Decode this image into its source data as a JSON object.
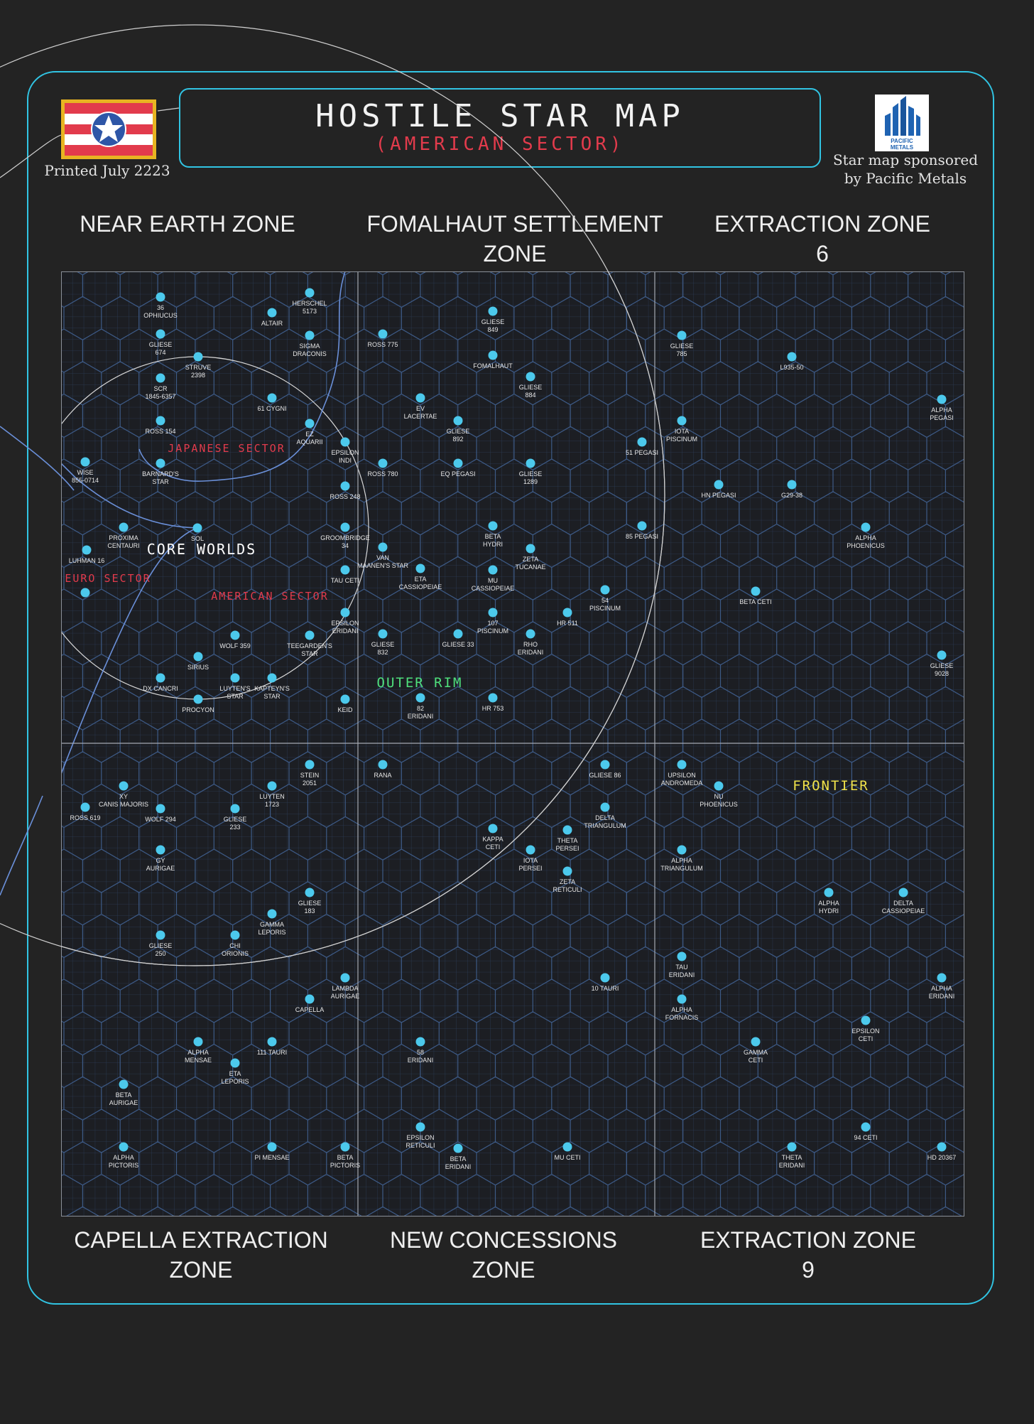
{
  "header": {
    "title": "HOSTILE STAR MAP",
    "subtitle": "(AMERICAN SECTOR)",
    "printed": "Printed July 2223",
    "sponsor_text": "Star map sponsored by Pacific Metals",
    "sponsor_logo_text": "PACIFIC METALS"
  },
  "colors": {
    "frame": "#31c4e3",
    "star": "#4cc9ec",
    "grid": "#3d5a86",
    "japanese": "#e23b4c",
    "american": "#e23b4c",
    "euro": "#e23b4c",
    "outer_rim": "#4fe07c",
    "frontier": "#f0e24a",
    "flag_red": "#e23b4c",
    "flag_gold": "#e8b422",
    "flag_blue": "#2e56a7"
  },
  "icons": {
    "flag": "american-colony-flag-icon",
    "sponsor": "pacific-metals-skyline-icon"
  },
  "zones": [
    {
      "id": "near-earth",
      "label": "NEAR EARTH ZONE"
    },
    {
      "id": "fomalhaut",
      "label": "FOMALHAUT SETTLEMENT\nZONE"
    },
    {
      "id": "extraction-6",
      "label": "EXTRACTION ZONE\n6"
    },
    {
      "id": "capella",
      "label": "CAPELLA EXTRACTION\nZONE"
    },
    {
      "id": "new-concessions",
      "label": "NEW CONCESSIONS\nZONE"
    },
    {
      "id": "extraction-9",
      "label": "EXTRACTION ZONE\n9"
    }
  ],
  "regions": [
    {
      "id": "core",
      "label": "CORE WORLDS",
      "color": "#ffffff"
    },
    {
      "id": "japanese",
      "label": "JAPANESE SECTOR",
      "color": "#e23b4c"
    },
    {
      "id": "euro",
      "label": "EURO SECTOR",
      "color": "#e23b4c"
    },
    {
      "id": "american",
      "label": "AMERICAN SECTOR",
      "color": "#e23b4c"
    },
    {
      "id": "outer-rim",
      "label": "OUTER RIM",
      "color": "#4fe07c"
    },
    {
      "id": "frontier",
      "label": "FRONTIER",
      "color": "#f0e24a"
    }
  ],
  "stars": [
    {
      "name": "36 OPHIUCUS"
    },
    {
      "name": "HERSCHEL 5173"
    },
    {
      "name": "ALTAIR"
    },
    {
      "name": "GLIESE 674"
    },
    {
      "name": "SIGMA DRACONIS"
    },
    {
      "name": "STRUVE 2398"
    },
    {
      "name": "SCR 1845-6357"
    },
    {
      "name": "61 CYGNI"
    },
    {
      "name": "ROSS 154"
    },
    {
      "name": "EZ AQUARII"
    },
    {
      "name": "EPSILON INDI"
    },
    {
      "name": "WISE 855-0714"
    },
    {
      "name": "BARNARD'S STAR"
    },
    {
      "name": "ROSS 248"
    },
    {
      "name": "PROXIMA CENTAURI"
    },
    {
      "name": "SOL"
    },
    {
      "name": "GROOMBRIDGE 34"
    },
    {
      "name": "LUHMAN 16"
    },
    {
      "name": "TAU CETI"
    },
    {
      "name": ""
    },
    {
      "name": "EPSILON ERIDANI"
    },
    {
      "name": "WOLF 359"
    },
    {
      "name": "TEEGARDEN'S STAR"
    },
    {
      "name": "SIRIUS"
    },
    {
      "name": "KAPTEYN'S STAR"
    },
    {
      "name": "DX CANCRI"
    },
    {
      "name": "LUYTEN'S STAR"
    },
    {
      "name": "PROCYON"
    },
    {
      "name": "KEID"
    },
    {
      "name": "GLIESE 849"
    },
    {
      "name": "ROSS 775"
    },
    {
      "name": "FOMALHAUT"
    },
    {
      "name": "GLIESE 884"
    },
    {
      "name": "EV LACERTAE"
    },
    {
      "name": "GLIESE 892"
    },
    {
      "name": "51 PEGASI"
    },
    {
      "name": "ROSS 780"
    },
    {
      "name": "EQ PEGASI"
    },
    {
      "name": "GLIESE 1289"
    },
    {
      "name": "BETA HYDRI"
    },
    {
      "name": "85 PEGASI"
    },
    {
      "name": "VAN MAANEN'S STAR"
    },
    {
      "name": "ZETA TUCANAE"
    },
    {
      "name": "ETA CASSIOPEIAE"
    },
    {
      "name": "MU CASSIOPEIAE"
    },
    {
      "name": "54 PISCINUM"
    },
    {
      "name": "107 PISCINUM"
    },
    {
      "name": "HR 511"
    },
    {
      "name": "GLIESE 832"
    },
    {
      "name": "GLIESE 33"
    },
    {
      "name": "RHO ERIDANI"
    },
    {
      "name": "82 ERIDANI"
    },
    {
      "name": "HR 753"
    },
    {
      "name": "GLIESE 785"
    },
    {
      "name": "L935-50"
    },
    {
      "name": "ALPHA PEGASI"
    },
    {
      "name": "IOTA PISCINUM"
    },
    {
      "name": "HN PEGASI"
    },
    {
      "name": "G29-38"
    },
    {
      "name": "ALPHA PHOENICUS"
    },
    {
      "name": "BETA CETI"
    },
    {
      "name": "GLIESE 9028"
    },
    {
      "name": "STEIN 2051"
    },
    {
      "name": "XY CANIS MAJORIS"
    },
    {
      "name": "LUYTEN 1723"
    },
    {
      "name": "ROSS 619"
    },
    {
      "name": "WOLF 294"
    },
    {
      "name": "GLIESE 233"
    },
    {
      "name": "GY AURIGAE"
    },
    {
      "name": "GLIESE 183"
    },
    {
      "name": "GAMMA LEPORIS"
    },
    {
      "name": "GLIESE 250"
    },
    {
      "name": "CHI ORIONIS"
    },
    {
      "name": "LAMBDA AURIGAE"
    },
    {
      "name": "CAPELLA"
    },
    {
      "name": "ALPHA MENSAE"
    },
    {
      "name": "111 TAURI"
    },
    {
      "name": "ETA LEPORIS"
    },
    {
      "name": "BETA AURIGAE"
    },
    {
      "name": "ALPHA PICTORIS"
    },
    {
      "name": "PI MENSAE"
    },
    {
      "name": "BETA PICTORIS"
    },
    {
      "name": "RANA"
    },
    {
      "name": "GLIESE 86"
    },
    {
      "name": "DELTA TRIANGULUM"
    },
    {
      "name": "KAPPA CETI"
    },
    {
      "name": "THETA PERSEI"
    },
    {
      "name": "IOTA PERSEI"
    },
    {
      "name": "ZETA RETICULI"
    },
    {
      "name": "10 TAURI"
    },
    {
      "name": "58 ERIDANI"
    },
    {
      "name": "EPSILON RETICULI"
    },
    {
      "name": "BETA ERIDANI"
    },
    {
      "name": "MU CETI"
    },
    {
      "name": "UPSILON ANDROMEDA"
    },
    {
      "name": "NU PHOENICUS"
    },
    {
      "name": "ALPHA TRIANGULUM"
    },
    {
      "name": "ALPHA HYDRI"
    },
    {
      "name": "DELTA CASSIOPEIAE"
    },
    {
      "name": "TAU ERIDANI"
    },
    {
      "name": "ALPHA ERIDANI"
    },
    {
      "name": "ALPHA FORNACIS"
    },
    {
      "name": "EPSILON CETI"
    },
    {
      "name": "GAMMA CETI"
    },
    {
      "name": "94 CETI"
    },
    {
      "name": "THETA ERIDANI"
    },
    {
      "name": "HD 20367"
    }
  ]
}
